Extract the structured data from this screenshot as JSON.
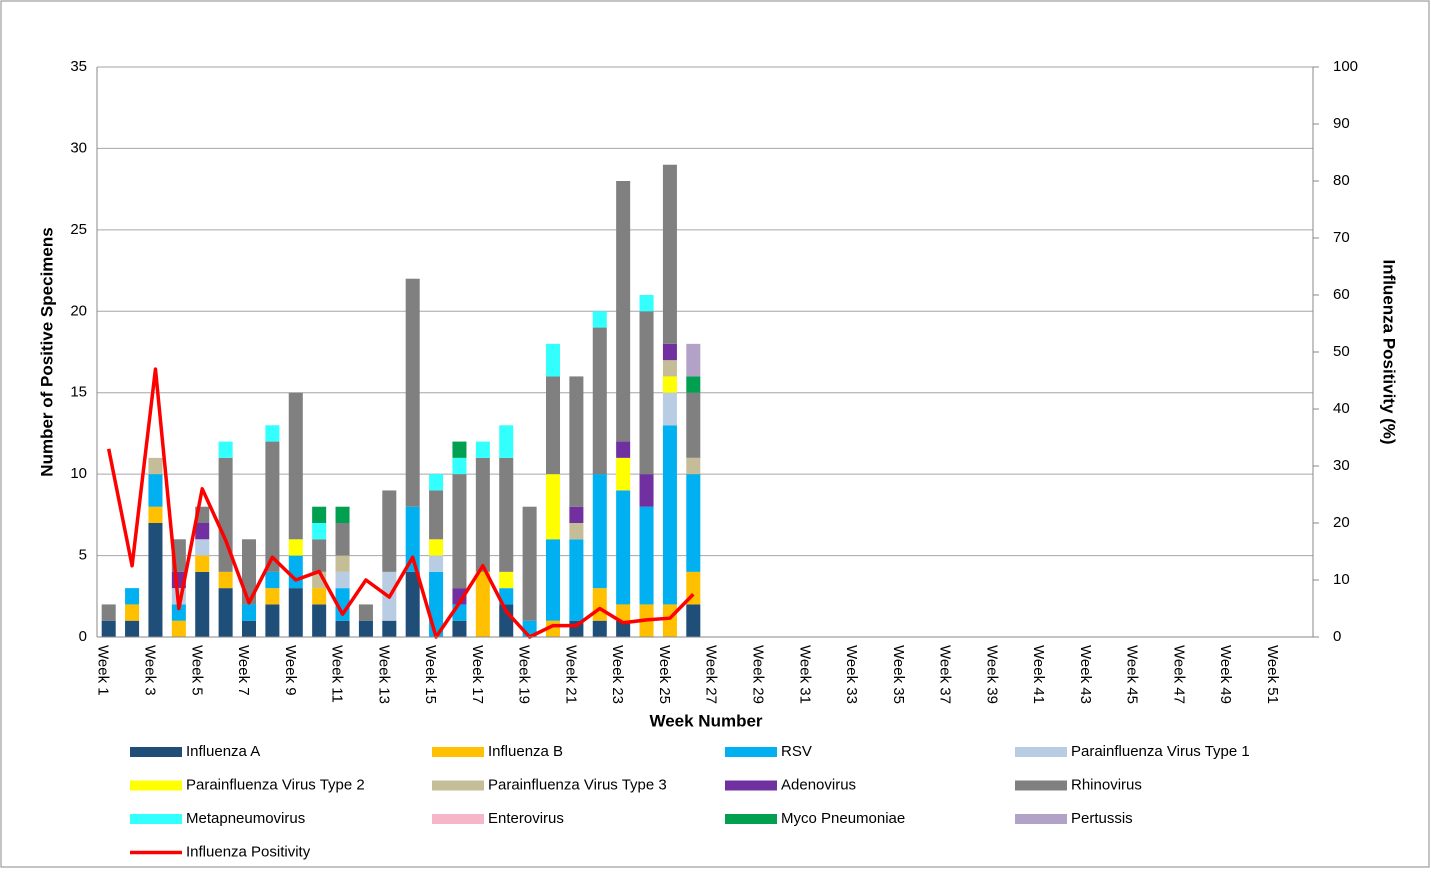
{
  "chart_data": {
    "type": "bar",
    "stacked": true,
    "x_label": "Week Number",
    "y_label": "Number of Positive Specimens",
    "y2_label": "Influenza Positivity (%)",
    "categories": [
      "Week 1",
      null,
      "Week 3",
      null,
      "Week 5",
      null,
      "Week 7",
      null,
      "Week 9",
      null,
      "Week 11",
      null,
      "Week 13",
      null,
      "Week 15",
      null,
      "Week 17",
      null,
      "Week 19",
      null,
      "Week 21",
      null,
      "Week 23",
      null,
      "Week 25",
      null,
      "Week 27",
      null,
      "Week 29",
      null,
      "Week 31",
      null,
      "Week 33",
      null,
      "Week 35",
      null,
      "Week 37",
      null,
      "Week 39",
      null,
      "Week 41",
      null,
      "Week 43",
      null,
      "Week 45",
      null,
      "Week 47",
      null,
      "Week 49",
      null,
      "Week 51",
      null
    ],
    "ylim": [
      0,
      35
    ],
    "yticks": [
      0,
      5,
      10,
      15,
      20,
      25,
      30,
      35
    ],
    "y2lim": [
      0,
      100
    ],
    "y2ticks": [
      0,
      10,
      20,
      30,
      40,
      50,
      60,
      70,
      80,
      90,
      100
    ],
    "grid": true,
    "legend": "bottom",
    "series": [
      {
        "name": "Influenza A",
        "color": "#1f4e79",
        "values": [
          1,
          1,
          7,
          0,
          4,
          3,
          1,
          2,
          3,
          2,
          1,
          1,
          1,
          4,
          0,
          1,
          0,
          2,
          0,
          0,
          1,
          1,
          1,
          0,
          0,
          2,
          null,
          null,
          null,
          null,
          null,
          null,
          null,
          null,
          null,
          null,
          null,
          null,
          null,
          null,
          null,
          null,
          null,
          null,
          null,
          null,
          null,
          null,
          null,
          null,
          null,
          null
        ]
      },
      {
        "name": "Influenza B",
        "color": "#ffc000",
        "values": [
          0,
          1,
          1,
          1,
          1,
          1,
          0,
          1,
          0,
          1,
          0,
          0,
          0,
          0,
          0,
          0,
          4,
          0,
          0,
          1,
          0,
          2,
          1,
          2,
          2,
          2,
          null,
          null,
          null,
          null,
          null,
          null,
          null,
          null,
          null,
          null,
          null,
          null,
          null,
          null,
          null,
          null,
          null,
          null,
          null,
          null,
          null,
          null,
          null,
          null,
          null,
          null
        ]
      },
      {
        "name": "RSV",
        "color": "#00b0f0",
        "values": [
          0,
          1,
          2,
          1,
          0,
          0,
          1,
          1,
          2,
          0,
          2,
          0,
          0,
          4,
          4,
          1,
          0,
          1,
          1,
          5,
          5,
          7,
          7,
          6,
          11,
          6,
          null,
          null,
          null,
          null,
          null,
          null,
          null,
          null,
          null,
          null,
          null,
          null,
          null,
          null,
          null,
          null,
          null,
          null,
          null,
          null,
          null,
          null,
          null,
          null,
          null,
          null
        ]
      },
      {
        "name": "Parainfluenza Virus Type 1",
        "color": "#b8cce4",
        "values": [
          0,
          0,
          0,
          1,
          1,
          0,
          0,
          0,
          0,
          0,
          1,
          0,
          3,
          0,
          1,
          0,
          0,
          0,
          0,
          0,
          0,
          0,
          0,
          0,
          2,
          0,
          null,
          null,
          null,
          null,
          null,
          null,
          null,
          null,
          null,
          null,
          null,
          null,
          null,
          null,
          null,
          null,
          null,
          null,
          null,
          null,
          null,
          null,
          null,
          null,
          null,
          null
        ]
      },
      {
        "name": "Parainfluenza Virus Type 2",
        "color": "#ffff00",
        "values": [
          0,
          0,
          0,
          0,
          0,
          0,
          0,
          0,
          1,
          0,
          0,
          0,
          0,
          0,
          1,
          0,
          0,
          1,
          0,
          4,
          0,
          0,
          2,
          0,
          1,
          0,
          null,
          null,
          null,
          null,
          null,
          null,
          null,
          null,
          null,
          null,
          null,
          null,
          null,
          null,
          null,
          null,
          null,
          null,
          null,
          null,
          null,
          null,
          null,
          null,
          null,
          null
        ]
      },
      {
        "name": "Parainfluenza Virus Type 3",
        "color": "#c4bd97",
        "values": [
          0,
          0,
          1,
          0,
          0,
          0,
          0,
          0,
          0,
          1,
          1,
          0,
          0,
          0,
          0,
          0,
          0,
          0,
          0,
          0,
          1,
          0,
          0,
          0,
          1,
          1,
          null,
          null,
          null,
          null,
          null,
          null,
          null,
          null,
          null,
          null,
          null,
          null,
          null,
          null,
          null,
          null,
          null,
          null,
          null,
          null,
          null,
          null,
          null,
          null,
          null,
          null
        ]
      },
      {
        "name": "Adenovirus",
        "color": "#7030a0",
        "values": [
          0,
          0,
          0,
          1,
          1,
          0,
          0,
          0,
          0,
          0,
          0,
          0,
          0,
          0,
          0,
          1,
          0,
          0,
          0,
          0,
          1,
          0,
          1,
          2,
          1,
          0,
          null,
          null,
          null,
          null,
          null,
          null,
          null,
          null,
          null,
          null,
          null,
          null,
          null,
          null,
          null,
          null,
          null,
          null,
          null,
          null,
          null,
          null,
          null,
          null,
          null,
          null
        ]
      },
      {
        "name": "Rhinovirus",
        "color": "#808080",
        "values": [
          1,
          0,
          0,
          2,
          1,
          7,
          4,
          8,
          9,
          2,
          2,
          1,
          5,
          14,
          3,
          7,
          7,
          7,
          7,
          6,
          8,
          9,
          16,
          10,
          11,
          4,
          null,
          null,
          null,
          null,
          null,
          null,
          null,
          null,
          null,
          null,
          null,
          null,
          null,
          null,
          null,
          null,
          null,
          null,
          null,
          null,
          null,
          null,
          null,
          null,
          null,
          null
        ]
      },
      {
        "name": "Metapneumovirus",
        "color": "#33ffff",
        "values": [
          0,
          0,
          0,
          0,
          0,
          1,
          0,
          1,
          0,
          1,
          0,
          0,
          0,
          0,
          1,
          1,
          1,
          2,
          0,
          2,
          0,
          1,
          0,
          1,
          0,
          0,
          null,
          null,
          null,
          null,
          null,
          null,
          null,
          null,
          null,
          null,
          null,
          null,
          null,
          null,
          null,
          null,
          null,
          null,
          null,
          null,
          null,
          null,
          null,
          null,
          null,
          null
        ]
      },
      {
        "name": "Enterovirus",
        "color": "#f4b6c8",
        "values": [
          0,
          0,
          0,
          0,
          0,
          0,
          0,
          0,
          0,
          0,
          0,
          0,
          0,
          0,
          0,
          0,
          0,
          0,
          0,
          0,
          0,
          0,
          0,
          0,
          0,
          0,
          null,
          null,
          null,
          null,
          null,
          null,
          null,
          null,
          null,
          null,
          null,
          null,
          null,
          null,
          null,
          null,
          null,
          null,
          null,
          null,
          null,
          null,
          null,
          null,
          null,
          null
        ]
      },
      {
        "name": "Myco Pneumoniae",
        "color": "#00a050",
        "values": [
          0,
          0,
          0,
          0,
          0,
          0,
          0,
          0,
          0,
          1,
          1,
          0,
          0,
          0,
          0,
          1,
          0,
          0,
          0,
          0,
          0,
          0,
          0,
          0,
          0,
          1,
          null,
          null,
          null,
          null,
          null,
          null,
          null,
          null,
          null,
          null,
          null,
          null,
          null,
          null,
          null,
          null,
          null,
          null,
          null,
          null,
          null,
          null,
          null,
          null,
          null,
          null
        ]
      },
      {
        "name": "Pertussis",
        "color": "#b3a2c7",
        "values": [
          0,
          0,
          0,
          0,
          0,
          0,
          0,
          0,
          0,
          0,
          0,
          0,
          0,
          0,
          0,
          0,
          0,
          0,
          0,
          0,
          0,
          0,
          0,
          0,
          0,
          2,
          null,
          null,
          null,
          null,
          null,
          null,
          null,
          null,
          null,
          null,
          null,
          null,
          null,
          null,
          null,
          null,
          null,
          null,
          null,
          null,
          null,
          null,
          null,
          null,
          null,
          null
        ]
      },
      {
        "name": "Influenza Positivity",
        "color": "#ff0000",
        "type": "line",
        "axis": "y2",
        "values": [
          33,
          12.5,
          47,
          5,
          26,
          17,
          6,
          14,
          10,
          11.5,
          4,
          10,
          7,
          14,
          0,
          6,
          12.5,
          4.5,
          0,
          2,
          2,
          5,
          2.5,
          3,
          3.3,
          7.5,
          null,
          null,
          null,
          null,
          null,
          null,
          null,
          null,
          null,
          null,
          null,
          null,
          null,
          null,
          null,
          null,
          null,
          null,
          null,
          null,
          null,
          null,
          null,
          null,
          null,
          null
        ]
      }
    ]
  }
}
